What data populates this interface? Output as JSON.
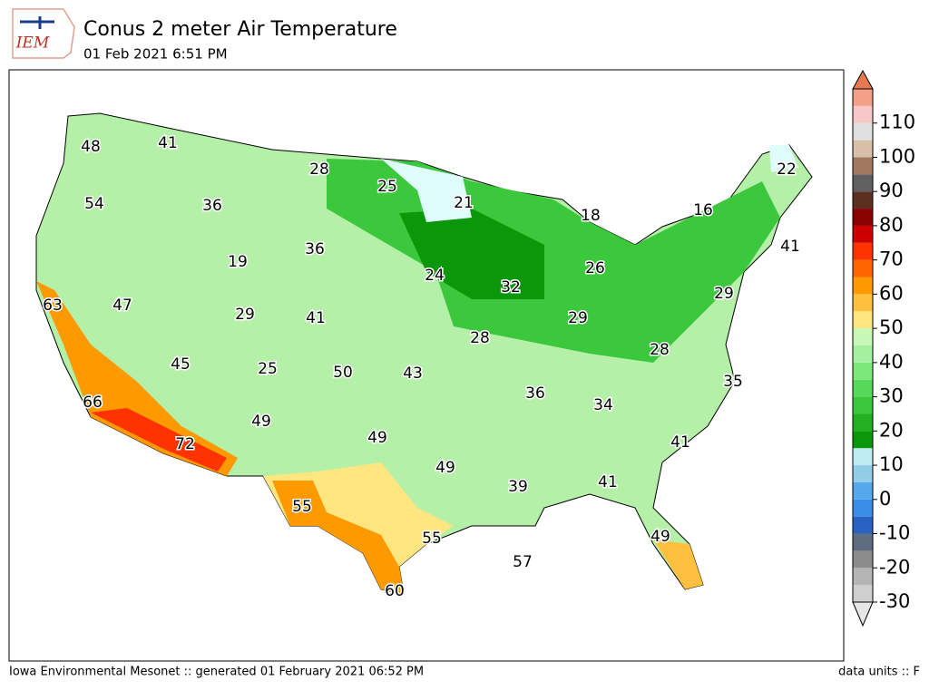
{
  "logo": "IEM",
  "header": {
    "title": "Conus 2 meter Air Temperature",
    "subtitle": "01 Feb 2021 6:51 PM"
  },
  "map": {
    "labels": [
      48,
      41,
      28,
      25,
      21,
      22,
      18,
      16,
      54,
      36,
      36,
      19,
      24,
      32,
      26,
      41,
      29,
      63,
      47,
      29,
      41,
      29,
      28,
      28,
      45,
      25,
      50,
      43,
      35,
      66,
      36,
      34,
      49,
      49,
      41,
      72,
      49,
      39,
      41,
      55,
      55,
      49,
      57,
      60
    ]
  },
  "colorbar": {
    "lim": [
      -30,
      120
    ],
    "ticks": [
      -30,
      -20,
      -10,
      0,
      10,
      20,
      30,
      40,
      50,
      60,
      70,
      80,
      90,
      100,
      110
    ],
    "colors": [
      "#e6e6e6",
      "#cfcfcf",
      "#b4b4b4",
      "#8c8c8c",
      "#606c80",
      "#2a62c4",
      "#3a8ee8",
      "#55a8ec",
      "#92cce6",
      "#bfeaf2",
      "#0a980a",
      "#22b022",
      "#3cc83c",
      "#58d858",
      "#7ce87c",
      "#a4f0a0",
      "#c8f8b8",
      "#ffe680",
      "#ffc040",
      "#ff9900",
      "#ff6600",
      "#ff3300",
      "#cc0000",
      "#8b0000",
      "#5c3020",
      "#606060",
      "#a07860",
      "#d8c0a8",
      "#e0e0e0",
      "#f8c8c8",
      "#f4a088",
      "#e87850"
    ]
  },
  "footer": {
    "left": "Iowa Environmental Mesonet :: generated 01 February 2021 06:52 PM",
    "right": "data units :: F"
  }
}
